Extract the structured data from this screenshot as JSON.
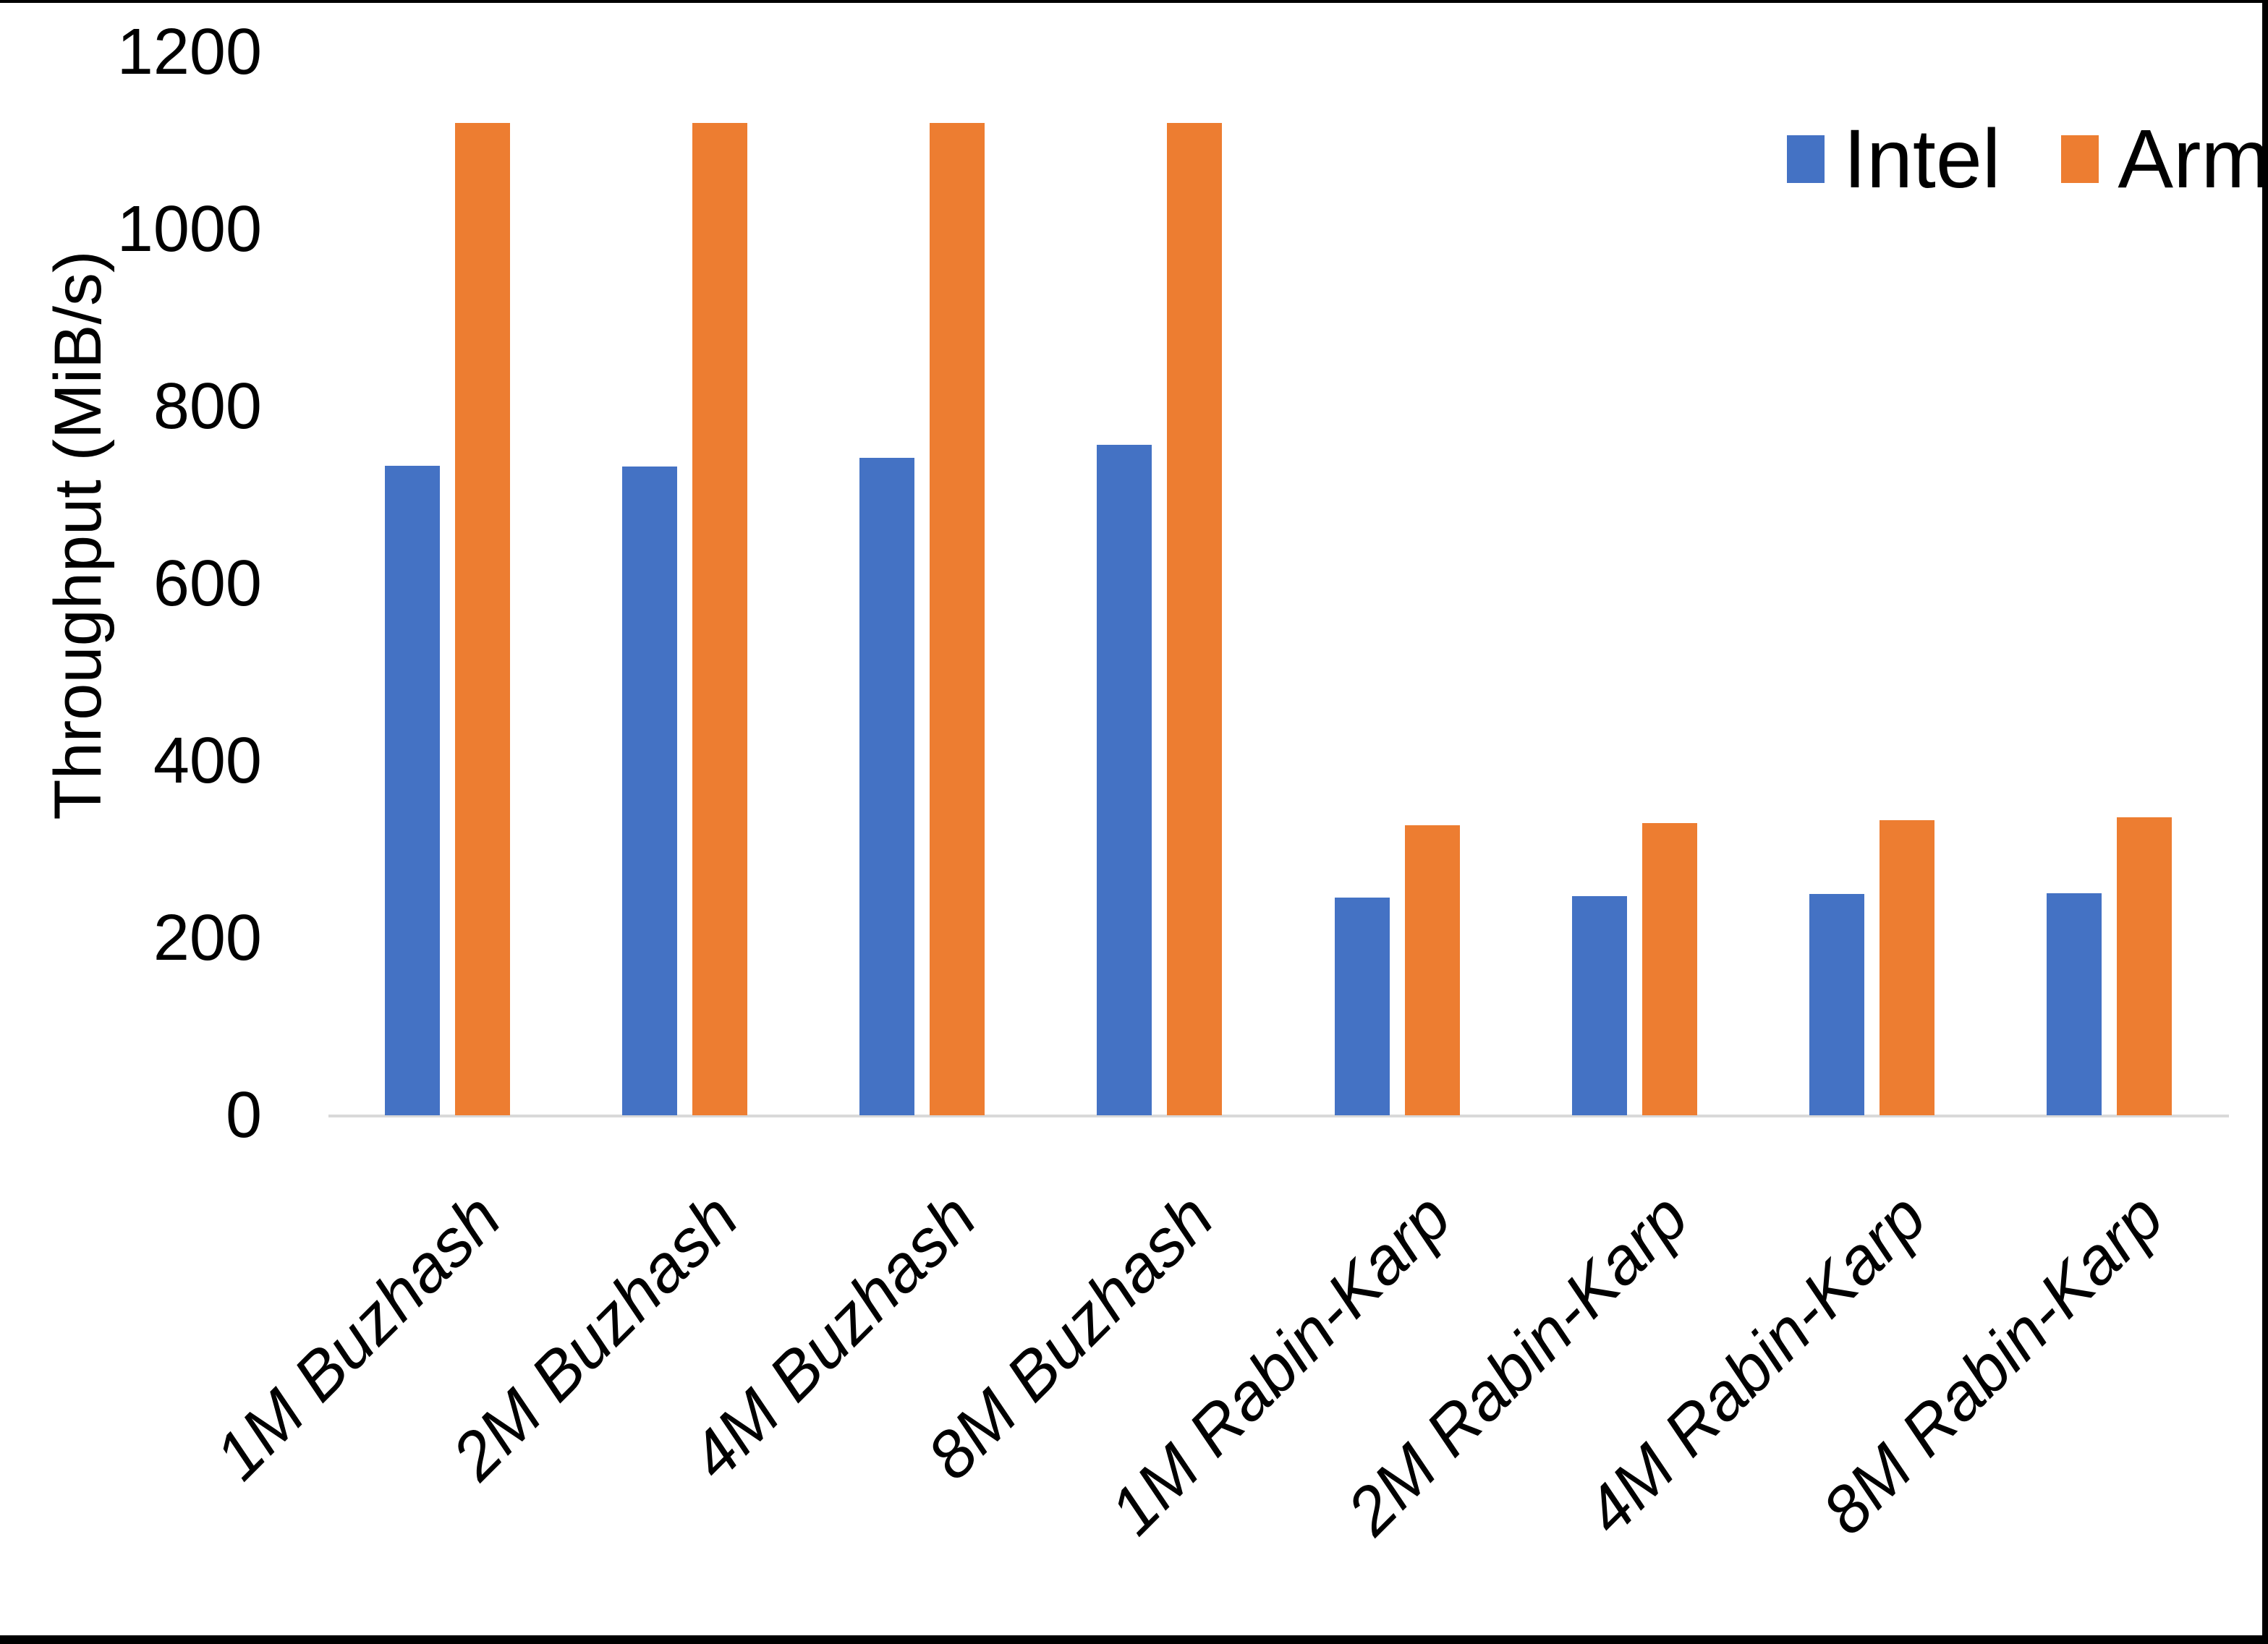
{
  "chart_data": {
    "type": "bar",
    "title": "",
    "xlabel": "",
    "ylabel": "Throughput (MiB/s)",
    "categories": [
      "1M Buzhash",
      "2M Buzhash",
      "4M Buzhash",
      "8M Buzhash",
      "1M Rabin-Karp",
      "2M Rabin-Karp",
      "4M Rabin-Karp",
      "8M Rabin-Karp"
    ],
    "series": [
      {
        "name": "Intel",
        "color": "#4472C4",
        "values": [
          733,
          732,
          742,
          757,
          246,
          247,
          250,
          251
        ]
      },
      {
        "name": "Arm",
        "color": "#ED7D31",
        "values": [
          1120,
          1120,
          1120,
          1120,
          327,
          330,
          333,
          336
        ]
      }
    ],
    "ylim": [
      0,
      1200
    ],
    "yticks": [
      0,
      200,
      400,
      600,
      800,
      1000,
      1200
    ],
    "ytick_labels": [
      "0",
      "200",
      "400",
      "600",
      "800",
      "1000",
      "1200"
    ],
    "grid": false,
    "legend_position": "top-right",
    "bar_orientation": "vertical"
  },
  "colors": {
    "intel": "#4472C4",
    "arm": "#ED7D31",
    "axis_line": "#D9D9D9",
    "text": "#000000",
    "background": "#FFFFFF",
    "frame": "#000000"
  }
}
